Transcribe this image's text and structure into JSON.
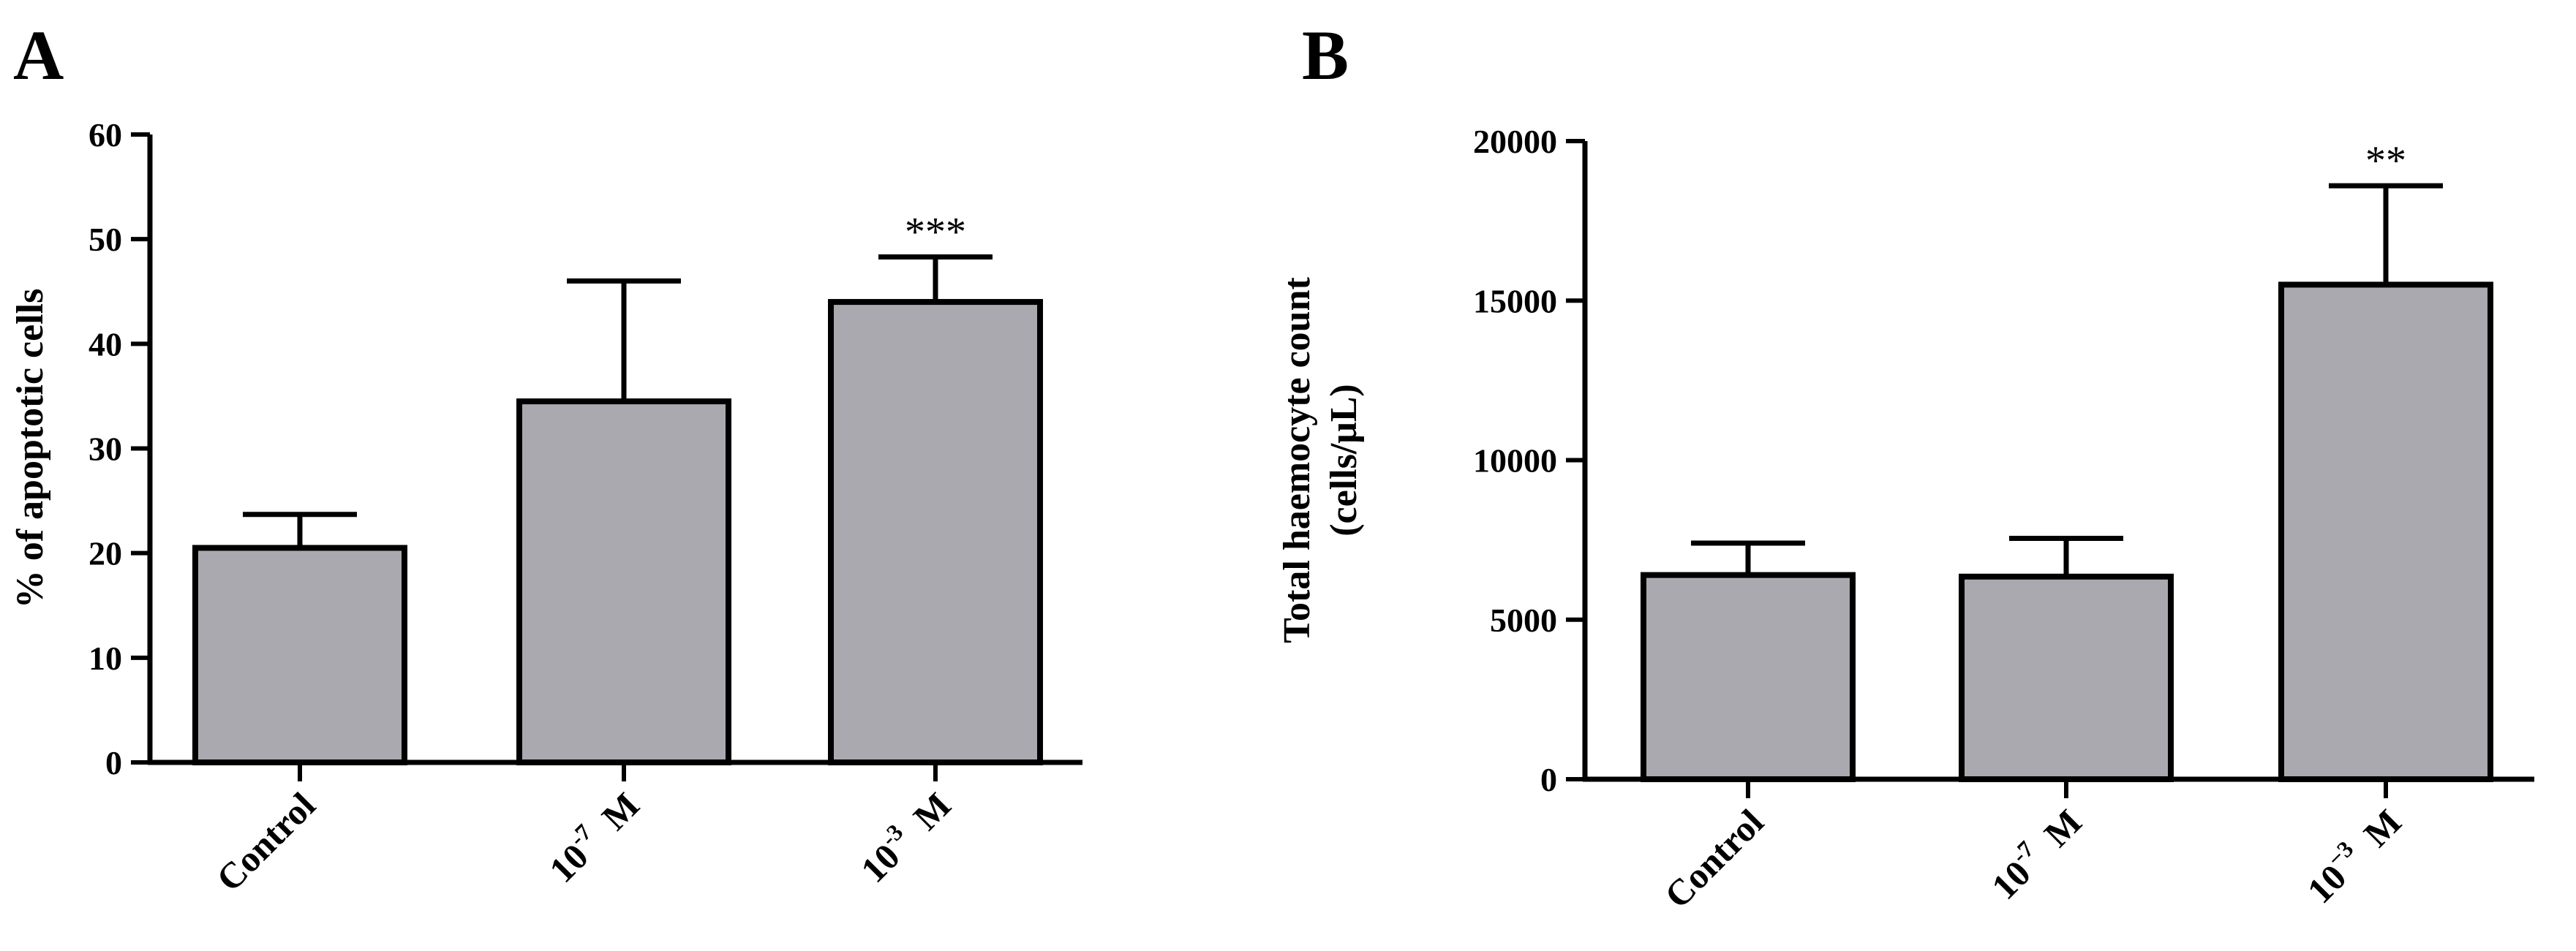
{
  "figure": {
    "panel_a_letter": "A",
    "panel_b_letter": "B"
  },
  "colors": {
    "bar_fill": "#a9a9af",
    "stroke": "#000000",
    "background": "#ffffff"
  },
  "chart_data": [
    {
      "type": "bar",
      "panel": "A",
      "ylabel": "% of apoptotic cells",
      "ylabel2": "",
      "ylim": [
        0,
        60
      ],
      "yticks": [
        0,
        10,
        20,
        30,
        40,
        50,
        60
      ],
      "ytick_labels": [
        "0",
        "10",
        "20",
        "30",
        "40",
        "50",
        "60"
      ],
      "categories": [
        {
          "base": "Control",
          "sup": "",
          "unit": ""
        },
        {
          "base": "10",
          "sup": "-7",
          "unit": "M"
        },
        {
          "base": "10",
          "sup": "-3",
          "unit": "M"
        }
      ],
      "values": [
        20.5,
        34.5,
        44
      ],
      "errors": [
        3.2,
        11.5,
        4.3
      ],
      "annotations": [
        "",
        "",
        "***"
      ]
    },
    {
      "type": "bar",
      "panel": "B",
      "ylabel": "Total haemocyte count",
      "ylabel2": "(cells/μL)",
      "ylim": [
        0,
        20000
      ],
      "yticks": [
        0,
        5000,
        10000,
        15000,
        20000
      ],
      "ytick_labels": [
        "0",
        "5000",
        "10000",
        "15000",
        "20000"
      ],
      "categories": [
        {
          "base": "Control",
          "sup": "",
          "unit": ""
        },
        {
          "base": "10",
          "sup": "-7",
          "unit": "M"
        },
        {
          "base": "10",
          "sup": "−3",
          "unit": "M"
        }
      ],
      "values": [
        6400,
        6350,
        15500
      ],
      "errors": [
        1000,
        1200,
        3100
      ],
      "annotations": [
        "",
        "",
        "**"
      ]
    }
  ]
}
